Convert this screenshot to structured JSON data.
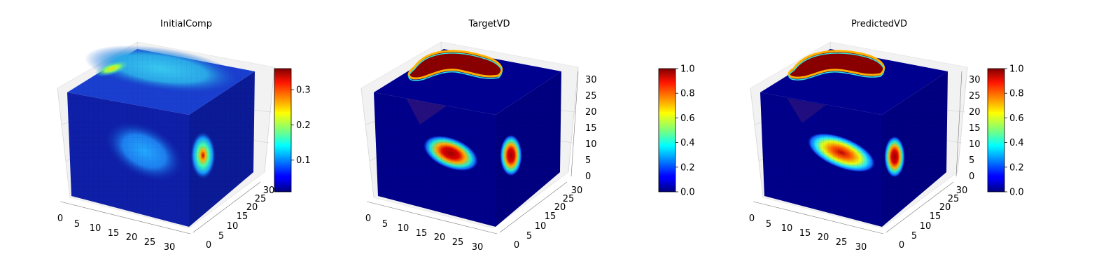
{
  "chart_data": [
    {
      "type": "heatmap",
      "subtype": "3d-voxel-cube",
      "title": "InitialComp",
      "colormap": "jet",
      "x_ticks": [
        "0",
        "5",
        "10",
        "15",
        "20",
        "25",
        "30"
      ],
      "y_ticks": [
        "0",
        "5",
        "10",
        "15",
        "20",
        "25",
        "30"
      ],
      "z_ticks": [],
      "colorbar": {
        "range": [
          0.01,
          0.36
        ],
        "ticks": [
          "0.1",
          "0.2",
          "0.3"
        ],
        "tick_values": [
          0.1,
          0.2,
          0.3
        ]
      },
      "grid": true,
      "features": [
        {
          "face": "front",
          "value": 0.13,
          "shape": "ellipse"
        },
        {
          "face": "right",
          "value": 0.36,
          "shape": "ellipse"
        },
        {
          "face": "top",
          "value": 0.12,
          "shape": "band"
        },
        {
          "face": "top",
          "value": 0.22,
          "shape": "spot"
        }
      ]
    },
    {
      "type": "heatmap",
      "subtype": "3d-voxel-cube",
      "title": "TargetVD",
      "colormap": "jet",
      "x_ticks": [
        "0",
        "5",
        "10",
        "15",
        "20",
        "25",
        "30"
      ],
      "y_ticks": [
        "0",
        "5",
        "10",
        "15",
        "20",
        "25",
        "30"
      ],
      "z_ticks": [
        "0",
        "5",
        "10",
        "15",
        "20",
        "25",
        "30"
      ],
      "colorbar": {
        "range": [
          0.0,
          1.0
        ],
        "ticks": [
          "0.0",
          "0.2",
          "0.4",
          "0.6",
          "0.8",
          "1.0"
        ],
        "tick_values": [
          0.0,
          0.2,
          0.4,
          0.6,
          0.8,
          1.0
        ]
      },
      "grid": true,
      "features": [
        {
          "face": "front",
          "value": 1.0,
          "shape": "ellipse"
        },
        {
          "face": "right",
          "value": 1.0,
          "shape": "ellipse"
        },
        {
          "face": "top",
          "value": 1.0,
          "shape": "blob"
        }
      ]
    },
    {
      "type": "heatmap",
      "subtype": "3d-voxel-cube",
      "title": "PredictedVD",
      "colormap": "jet",
      "x_ticks": [
        "0",
        "5",
        "10",
        "15",
        "20",
        "25",
        "30"
      ],
      "y_ticks": [
        "0",
        "5",
        "10",
        "15",
        "20",
        "25",
        "30"
      ],
      "z_ticks": [
        "0",
        "5",
        "10",
        "15",
        "20",
        "25",
        "30"
      ],
      "colorbar": {
        "range": [
          0.0,
          1.0
        ],
        "ticks": [
          "0.0",
          "0.2",
          "0.4",
          "0.6",
          "0.8",
          "1.0"
        ],
        "tick_values": [
          0.0,
          0.2,
          0.4,
          0.6,
          0.8,
          1.0
        ]
      },
      "grid": true,
      "features": [
        {
          "face": "front",
          "value": 0.9,
          "shape": "ellipse"
        },
        {
          "face": "right",
          "value": 1.0,
          "shape": "ellipse"
        },
        {
          "face": "top",
          "value": 1.0,
          "shape": "blob"
        }
      ]
    }
  ]
}
